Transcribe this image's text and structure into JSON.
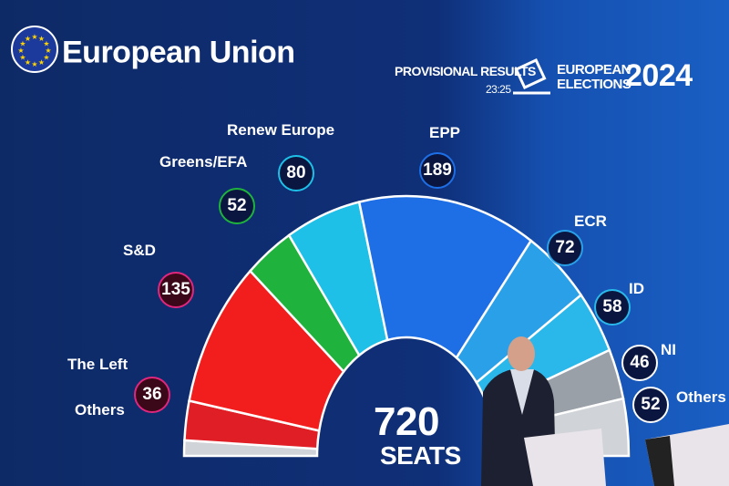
{
  "header": {
    "title": "European Union",
    "provisional": "PROVISIONAL RESULTS",
    "time": "23:25",
    "elections_line1": "EUROPEAN",
    "elections_line2": "ELECTIONS",
    "year": "2024",
    "logo_icon": "eu-flag-icon",
    "ballot_icon": "ballot-box-icon"
  },
  "center": {
    "total": "720",
    "unit": "SEATS"
  },
  "chart_data": {
    "type": "pie",
    "subtype": "semicircle-parliament",
    "total_seats": 720,
    "categories": [
      "Others",
      "The Left",
      "S&D",
      "Greens/EFA",
      "Renew Europe",
      "EPP",
      "ECR",
      "ID",
      "NI",
      "Others"
    ],
    "values": [
      null,
      36,
      135,
      52,
      80,
      189,
      72,
      58,
      46,
      52
    ],
    "labels": [
      "",
      "36",
      "135",
      "52",
      "80",
      "189",
      "72",
      "58",
      "46",
      "52"
    ],
    "colors": [
      "#d0d3d8",
      "#e01e26",
      "#f21d1d",
      "#1fb33d",
      "#1ec0e8",
      "#1e6fe6",
      "#2aa0e8",
      "#2ab8ea",
      "#9aa0a8",
      "#d0d3d8"
    ],
    "badge_colors": [
      "",
      "#e0267d",
      "#e0267d",
      "#1fb33d",
      "#1ec0e8",
      "#1e6fe6",
      "#2aa0e8",
      "#2ab8ea",
      "#ffffff",
      "#ffffff"
    ]
  }
}
